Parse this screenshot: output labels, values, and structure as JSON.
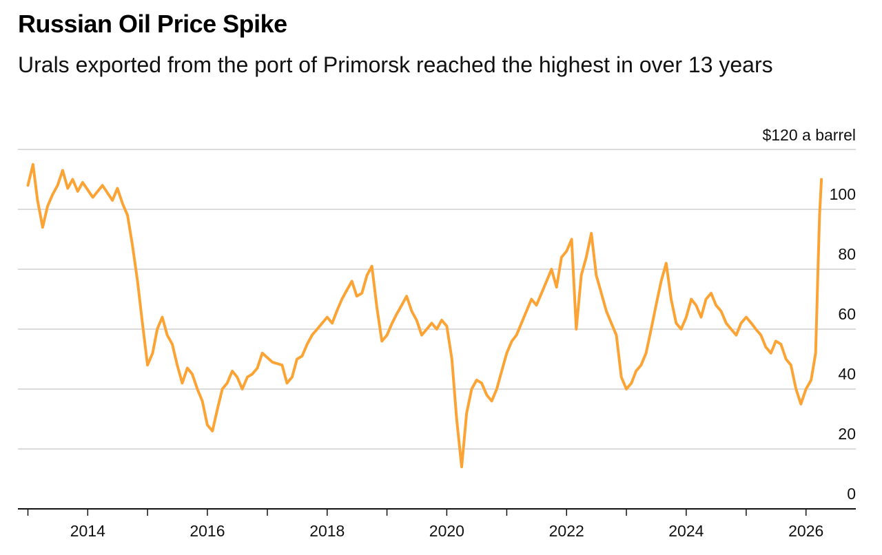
{
  "header": {
    "title": "Russian Oil Price Spike",
    "subtitle": "Urals exported from the port of Primorsk reached the highest in over 13 years"
  },
  "chart_data": {
    "type": "line",
    "title": "Russian Oil Price Spike",
    "subtitle": "Urals exported from the port of Primorsk reached the highest in over 13 years",
    "xlabel": "",
    "ylabel": "",
    "y_unit_label": "$120 a barrel",
    "ylim": [
      0,
      120
    ],
    "yticks": [
      0,
      20,
      40,
      60,
      80,
      100,
      120
    ],
    "ytick_labels": [
      "0",
      "20",
      "40",
      "60",
      "80",
      "100",
      ""
    ],
    "xlim": [
      "2012-11-01",
      "2026-11-01"
    ],
    "xtick_labels": [
      "2014",
      "2016",
      "2018",
      "2020",
      "2022",
      "2024",
      "2026"
    ],
    "grid": true,
    "line_color": "#FBA435",
    "series": [
      {
        "name": "",
        "x": [
          "2013-01-01",
          "2013-02-01",
          "2013-03-01",
          "2013-04-01",
          "2013-05-01",
          "2013-06-01",
          "2013-07-01",
          "2013-08-01",
          "2013-09-01",
          "2013-10-01",
          "2013-11-01",
          "2013-12-01",
          "2014-02-01",
          "2014-04-01",
          "2014-06-01",
          "2014-07-01",
          "2014-08-01",
          "2014-09-01",
          "2014-10-01",
          "2014-11-01",
          "2014-12-01",
          "2015-01-01",
          "2015-02-01",
          "2015-03-01",
          "2015-04-01",
          "2015-05-01",
          "2015-06-01",
          "2015-07-01",
          "2015-08-01",
          "2015-09-01",
          "2015-10-01",
          "2015-11-01",
          "2015-12-01",
          "2016-01-01",
          "2016-02-01",
          "2016-03-01",
          "2016-04-01",
          "2016-05-01",
          "2016-06-01",
          "2016-07-01",
          "2016-08-01",
          "2016-09-01",
          "2016-10-01",
          "2016-11-01",
          "2016-12-01",
          "2017-02-01",
          "2017-04-01",
          "2017-05-01",
          "2017-06-01",
          "2017-07-01",
          "2017-08-01",
          "2017-09-01",
          "2017-10-01",
          "2017-11-01",
          "2018-01-01",
          "2018-02-01",
          "2018-03-01",
          "2018-04-01",
          "2018-05-01",
          "2018-06-01",
          "2018-07-01",
          "2018-08-01",
          "2018-09-01",
          "2018-10-01",
          "2018-11-01",
          "2018-12-01",
          "2019-01-01",
          "2019-02-01",
          "2019-03-01",
          "2019-04-01",
          "2019-05-01",
          "2019-06-01",
          "2019-07-01",
          "2019-08-01",
          "2019-09-01",
          "2019-10-01",
          "2019-11-01",
          "2019-12-01",
          "2020-01-01",
          "2020-02-01",
          "2020-03-01",
          "2020-04-01",
          "2020-05-01",
          "2020-06-01",
          "2020-07-01",
          "2020-08-01",
          "2020-09-01",
          "2020-10-01",
          "2020-11-01",
          "2020-12-01",
          "2021-01-01",
          "2021-02-01",
          "2021-03-01",
          "2021-04-01",
          "2021-05-01",
          "2021-06-01",
          "2021-07-01",
          "2021-08-01",
          "2021-09-01",
          "2021-10-01",
          "2021-11-01",
          "2021-12-01",
          "2022-01-01",
          "2022-02-01",
          "2022-03-01",
          "2022-04-01",
          "2022-05-01",
          "2022-06-01",
          "2022-07-01",
          "2022-08-01",
          "2022-09-01",
          "2022-10-01",
          "2022-11-01",
          "2022-12-01",
          "2023-01-01",
          "2023-02-01",
          "2023-03-01",
          "2023-04-01",
          "2023-05-01",
          "2023-06-01",
          "2023-07-01",
          "2023-08-01",
          "2023-09-01",
          "2023-10-01",
          "2023-11-01",
          "2023-12-01",
          "2024-01-01",
          "2024-02-01",
          "2024-03-01",
          "2024-04-01",
          "2024-05-01",
          "2024-06-01",
          "2024-07-01",
          "2024-08-01",
          "2024-09-01",
          "2024-10-01",
          "2024-11-01",
          "2024-12-01",
          "2025-01-01",
          "2025-02-01",
          "2025-03-01",
          "2025-04-01",
          "2025-05-01",
          "2025-06-01",
          "2025-07-01",
          "2025-08-01",
          "2025-09-01",
          "2025-10-01",
          "2025-11-01",
          "2025-12-01",
          "2026-01-01",
          "2026-02-01",
          "2026-03-01",
          "2026-03-15",
          "2026-03-25",
          "2026-04-05"
        ],
        "values": [
          108,
          115,
          103,
          94,
          101,
          105,
          108,
          113,
          107,
          110,
          106,
          109,
          104,
          108,
          103,
          107,
          102,
          98,
          88,
          76,
          62,
          48,
          52,
          60,
          64,
          58,
          55,
          48,
          42,
          47,
          45,
          40,
          36,
          28,
          26,
          33,
          40,
          42,
          46,
          44,
          40,
          44,
          45,
          47,
          52,
          49,
          48,
          42,
          44,
          50,
          51,
          55,
          58,
          60,
          64,
          62,
          66,
          70,
          73,
          76,
          71,
          72,
          78,
          81,
          67,
          56,
          58,
          62,
          65,
          68,
          71,
          66,
          63,
          58,
          60,
          62,
          60,
          63,
          61,
          50,
          30,
          14,
          32,
          40,
          43,
          42,
          38,
          36,
          40,
          46,
          52,
          56,
          58,
          62,
          66,
          70,
          68,
          72,
          76,
          80,
          74,
          84,
          86,
          90,
          60,
          78,
          84,
          92,
          78,
          72,
          66,
          62,
          58,
          44,
          40,
          42,
          46,
          48,
          52,
          60,
          68,
          76,
          82,
          70,
          62,
          60,
          64,
          70,
          68,
          64,
          70,
          72,
          68,
          66,
          62,
          60,
          58,
          62,
          64,
          62,
          60,
          58,
          54,
          52,
          56,
          55,
          50,
          48,
          40,
          35,
          40,
          43,
          52,
          80,
          98,
          110
        ]
      }
    ]
  }
}
